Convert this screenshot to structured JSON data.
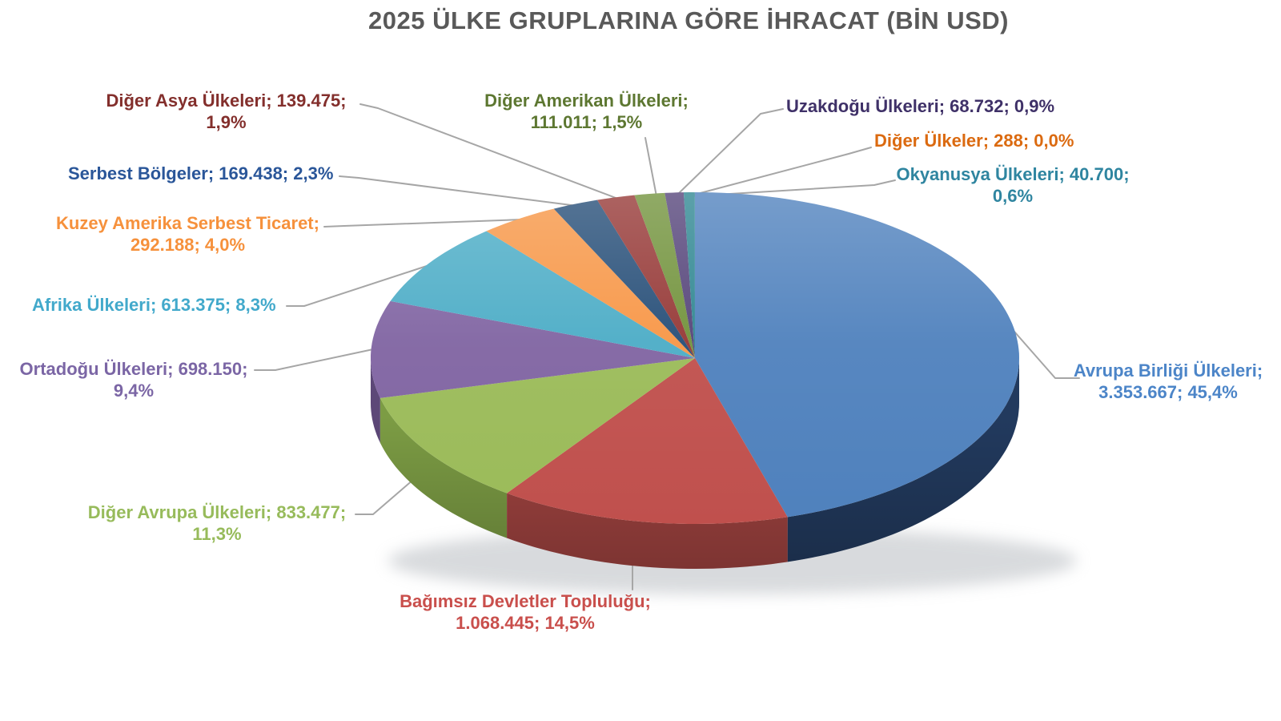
{
  "title": "2025 ÜLKE GRUPLARINA GÖRE İHRACAT (BİN USD)",
  "title_color": "#595959",
  "leader_line_color": "#A6A6A6",
  "background_color": "#FFFFFF",
  "chart_data": {
    "type": "pie",
    "is_3d": true,
    "title": "2025 ÜLKE GRUPLARINA GÖRE İHRACAT (BİN USD)",
    "unit": "BİN USD",
    "legend": "none",
    "label_format": "name; value; percent",
    "slices": [
      {
        "id": "ab",
        "name": "Avrupa Birliği Ülkeleri",
        "value": 3353667,
        "percent": 45.4,
        "color": "#4F81BD",
        "side_color": "#223A5E",
        "label_color": "#4C85C8",
        "label_lines": [
          "Avrupa Birliği Ülkeleri;",
          "3.353.667; 45,4%"
        ]
      },
      {
        "id": "bdt",
        "name": "Bağımsız Devletler Topluluğu",
        "value": 1068445,
        "percent": 14.5,
        "color": "#C0504D",
        "side_color": "#A04340",
        "label_color": "#C94F4C",
        "label_lines": [
          "Bağımsız Devletler Topluluğu;",
          "1.068.445; 14,5%"
        ]
      },
      {
        "id": "dav",
        "name": "Diğer Avrupa Ülkeleri",
        "value": 833477,
        "percent": 11.3,
        "color": "#9BBB59",
        "side_color": "#7C9C44",
        "label_color": "#97BB5B",
        "label_lines": [
          "Diğer Avrupa Ülkeleri; 833.477;",
          "11,3%"
        ]
      },
      {
        "id": "ort",
        "name": "Ortadoğu Ülkeleri",
        "value": 698150,
        "percent": 9.4,
        "color": "#8064A2",
        "side_color": "#5D4878",
        "label_color": "#7B66A5",
        "label_lines": [
          "Ortadoğu Ülkeleri; 698.150;",
          "9,4%"
        ]
      },
      {
        "id": "afr",
        "name": "Afrika Ülkeleri",
        "value": 613375,
        "percent": 8.3,
        "color": "#4BACC6",
        "side_color": "#357E92",
        "label_color": "#42A9CB",
        "label_lines": [
          "Afrika Ülkeleri; 613.375; 8,3%"
        ]
      },
      {
        "id": "kas",
        "name": "Kuzey Amerika Serbest Ticaret",
        "value": 292188,
        "percent": 4.0,
        "color": "#F79646",
        "side_color": "#B56D30",
        "label_color": "#F6913C",
        "label_lines": [
          "Kuzey Amerika Serbest Ticaret;",
          "292.188; 4,0%"
        ]
      },
      {
        "id": "sb",
        "name": "Serbest Bölgeler",
        "value": 169438,
        "percent": 2.3,
        "color": "#254D77",
        "side_color": "#1B3A5A",
        "label_color": "#2A5699",
        "label_lines": [
          "Serbest Bölgeler; 169.438; 2,3%"
        ]
      },
      {
        "id": "das",
        "name": "Diğer Asya Ülkeleri",
        "value": 139475,
        "percent": 1.9,
        "color": "#953735",
        "side_color": "#6E2927",
        "label_color": "#832F2C",
        "label_lines": [
          "Diğer Asya Ülkeleri; 139.475;",
          "1,9%"
        ]
      },
      {
        "id": "dam",
        "name": "Diğer Amerikan Ülkeleri",
        "value": 111011,
        "percent": 1.5,
        "color": "#71923B",
        "side_color": "#54702C",
        "label_color": "#5D7731",
        "label_lines": [
          "Diğer Amerikan Ülkeleri;",
          "111.011; 1,5%"
        ]
      },
      {
        "id": "uzk",
        "name": "Uzakdoğu Ülkeleri",
        "value": 68732,
        "percent": 0.9,
        "color": "#544379",
        "side_color": "#3E325A",
        "label_color": "#3F3168",
        "label_lines": [
          "Uzakdoğu Ülkeleri; 68.732; 0,9%"
        ]
      },
      {
        "id": "oky",
        "name": "Okyanusya Ülkeleri",
        "value": 40700,
        "percent": 0.6,
        "color": "#2E8691",
        "side_color": "#22636B",
        "label_color": "#2F85A0",
        "label_lines": [
          "Okyanusya Ülkeleri; 40.700;",
          "0,6%"
        ]
      },
      {
        "id": "dul",
        "name": "Diğer Ülkeler",
        "value": 288,
        "percent": 0.0,
        "color": "#B65708",
        "side_color": "#7E3C06",
        "label_color": "#DB6A10",
        "label_lines": [
          "Diğer Ülkeler; 288; 0,0%"
        ]
      }
    ]
  }
}
